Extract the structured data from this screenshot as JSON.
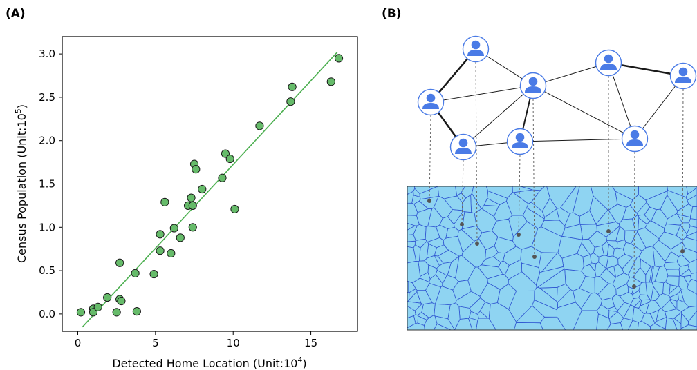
{
  "panels": {
    "a_label": "(A)",
    "b_label": "(B)"
  },
  "chart_data": {
    "type": "scatter",
    "title": "",
    "xlabel": "Detected Home Location (Unit:10",
    "xlabel_sup": "4",
    "xlabel_end": ")",
    "ylabel": "Census Population (Unit:10",
    "ylabel_sup": "5",
    "ylabel_end": ")",
    "xlim": [
      -1.0,
      18.0
    ],
    "ylim": [
      -0.2,
      3.2
    ],
    "xticks": [
      0,
      5,
      10,
      15
    ],
    "xtick_labels": [
      "0",
      "5",
      "10",
      "15"
    ],
    "yticks": [
      0.0,
      0.5,
      1.0,
      1.5,
      2.0,
      2.5,
      3.0
    ],
    "ytick_labels": [
      "0.0",
      "0.5",
      "1.0",
      "1.5",
      "2.0",
      "2.5",
      "3.0"
    ],
    "grid": false,
    "legend": "none",
    "point_color": "#66bb6a",
    "point_edge": "#1a1a1a",
    "fit_color": "#4caf50",
    "fit_line": {
      "x": [
        0.3,
        16.7
      ],
      "y": [
        -0.15,
        3.02
      ]
    },
    "points": [
      {
        "x": 0.2,
        "y": 0.02
      },
      {
        "x": 1.0,
        "y": 0.06
      },
      {
        "x": 1.0,
        "y": 0.02
      },
      {
        "x": 1.3,
        "y": 0.08
      },
      {
        "x": 1.9,
        "y": 0.19
      },
      {
        "x": 2.5,
        "y": 0.02
      },
      {
        "x": 2.7,
        "y": 0.17
      },
      {
        "x": 2.8,
        "y": 0.15
      },
      {
        "x": 2.7,
        "y": 0.59
      },
      {
        "x": 3.7,
        "y": 0.47
      },
      {
        "x": 3.8,
        "y": 0.03
      },
      {
        "x": 4.9,
        "y": 0.46
      },
      {
        "x": 5.3,
        "y": 0.92
      },
      {
        "x": 5.3,
        "y": 0.73
      },
      {
        "x": 5.6,
        "y": 1.29
      },
      {
        "x": 6.0,
        "y": 0.7
      },
      {
        "x": 6.2,
        "y": 0.99
      },
      {
        "x": 6.6,
        "y": 0.88
      },
      {
        "x": 7.1,
        "y": 1.25
      },
      {
        "x": 7.3,
        "y": 1.34
      },
      {
        "x": 7.4,
        "y": 1.25
      },
      {
        "x": 7.4,
        "y": 1.0
      },
      {
        "x": 7.5,
        "y": 1.73
      },
      {
        "x": 7.6,
        "y": 1.67
      },
      {
        "x": 8.0,
        "y": 1.44
      },
      {
        "x": 9.3,
        "y": 1.57
      },
      {
        "x": 9.5,
        "y": 1.85
      },
      {
        "x": 9.8,
        "y": 1.79
      },
      {
        "x": 10.1,
        "y": 1.21
      },
      {
        "x": 11.7,
        "y": 2.17
      },
      {
        "x": 13.7,
        "y": 2.45
      },
      {
        "x": 13.8,
        "y": 2.62
      },
      {
        "x": 16.3,
        "y": 2.68
      },
      {
        "x": 16.8,
        "y": 2.95
      }
    ]
  },
  "diagram": {
    "person_fill": "#4a7be6",
    "node_ring": "#4a7be6",
    "map_fill": "#8fd4f2",
    "map_edge": "#2f56d1",
    "dot_color": "#555555"
  }
}
